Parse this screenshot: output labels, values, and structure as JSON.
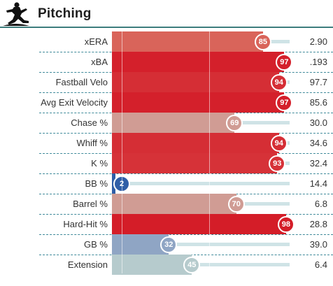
{
  "section": {
    "title": "Pitching",
    "icon": "pitcher-icon",
    "accent_color": "#3d7d7d"
  },
  "scale": {
    "min": 0,
    "max": 100
  },
  "rows": [
    {
      "label": "xERA",
      "percentile": 85,
      "value": "2.90",
      "color": "#d9645a"
    },
    {
      "label": "xBA",
      "percentile": 97,
      "value": ".193",
      "color": "#d4202b"
    },
    {
      "label": "Fastball Velo",
      "percentile": 94,
      "value": "97.7",
      "color": "#d52e35"
    },
    {
      "label": "Avg Exit Velocity",
      "percentile": 97,
      "value": "85.6",
      "color": "#d4202b"
    },
    {
      "label": "Chase %",
      "percentile": 69,
      "value": "30.0",
      "color": "#d09c94"
    },
    {
      "label": "Whiff %",
      "percentile": 94,
      "value": "34.6",
      "color": "#d52e35"
    },
    {
      "label": "K %",
      "percentile": 93,
      "value": "32.4",
      "color": "#d63238"
    },
    {
      "label": "BB %",
      "percentile": 2,
      "value": "14.4",
      "color": "#2f5ea7"
    },
    {
      "label": "Barrel %",
      "percentile": 70,
      "value": "6.8",
      "color": "#d09c94"
    },
    {
      "label": "Hard-Hit %",
      "percentile": 98,
      "value": "28.8",
      "color": "#d41d28"
    },
    {
      "label": "GB %",
      "percentile": 32,
      "value": "39.0",
      "color": "#8fa5c4"
    },
    {
      "label": "Extension",
      "percentile": 45,
      "value": "6.4",
      "color": "#b6cbcd"
    }
  ]
}
